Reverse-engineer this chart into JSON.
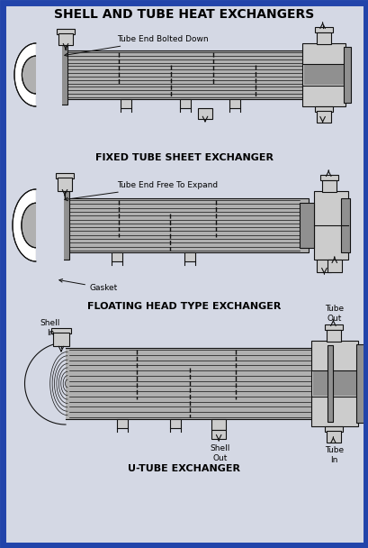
{
  "title": "SHELL AND TUBE HEAT EXCHANGERS",
  "bg_color": "#d4d8e4",
  "border_color": "#2244aa",
  "border_width": 5,
  "label1": "FIXED TUBE SHEET EXCHANGER",
  "label2": "FLOATING HEAD TYPE EXCHANGER",
  "label3": "U-TUBE EXCHANGER",
  "ann1": "Tube End Bolted Down",
  "ann2a": "Tube End Free To Expand",
  "ann2b": "Gasket",
  "ann3a": "Shell\nIn",
  "ann3b": "Tube\nOut",
  "ann3c": "Shell\nOut",
  "ann3d": "Tube\nIn",
  "lc": "#111111",
  "gray1": "#b0b0b0",
  "gray2": "#909090",
  "gray3": "#cccccc",
  "title_fs": 10,
  "label_fs": 8,
  "ann_fs": 6.5,
  "lw": 0.8
}
